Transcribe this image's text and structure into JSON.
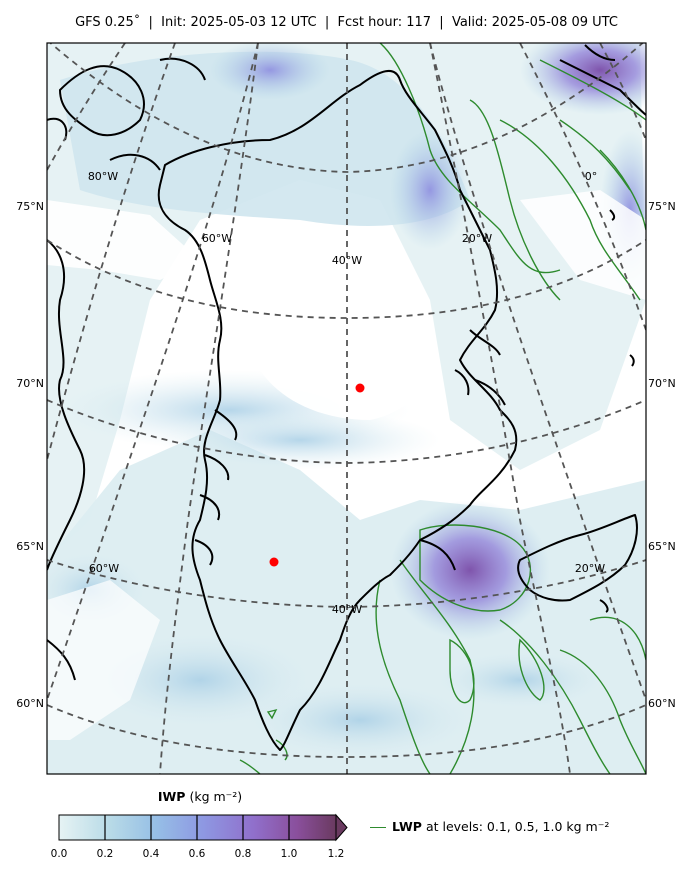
{
  "header": {
    "model": "GFS 0.25˚",
    "init": "Init: 2025-05-03 12 UTC",
    "fcst": "Fcst hour: 117",
    "valid": "Valid: 2025-05-08 09 UTC"
  },
  "map": {
    "lat_labels_left": [
      "75°N",
      "70°N",
      "65°N",
      "60°N"
    ],
    "lat_labels_right": [
      "75°N",
      "70°N",
      "65°N",
      "60°N"
    ],
    "lon_labels": [
      "80°W",
      "60°W",
      "40°W",
      "20°W",
      "0°",
      "60°W",
      "40°W",
      "20°W"
    ],
    "point_color": "#ff0000",
    "coast_color": "#000000",
    "lwp_contour_color": "#2e8b2e",
    "grid_color": "#555555"
  },
  "colorbar": {
    "title_bold": "IWP",
    "title_unit": "(kg m⁻²)",
    "ticks": [
      "0.0",
      "0.2",
      "0.4",
      "0.6",
      "0.8",
      "1.0",
      "1.2"
    ],
    "colors": [
      "#dfeff2",
      "#a9d0e6",
      "#8eaee6",
      "#8f83dc",
      "#8a5cb8",
      "#7a4680"
    ]
  },
  "legend": {
    "lwp_bold": "LWP",
    "lwp_text": "at levels: 0.1, 0.5, 1.0  kg m⁻²"
  }
}
